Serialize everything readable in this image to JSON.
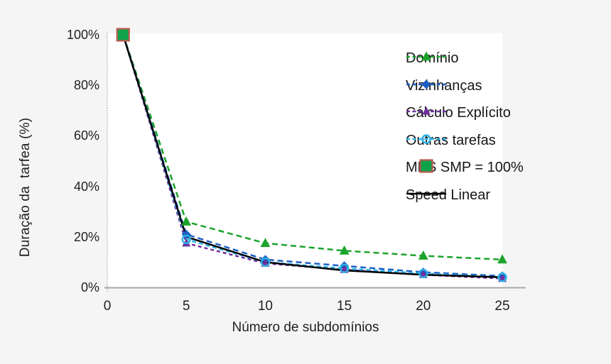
{
  "figure": {
    "background": "#f5f5f5",
    "plot_background": "#ffffff",
    "axis_color": "#a9a9a9",
    "text_color": "#1f1f1f"
  },
  "chart_data": {
    "type": "line",
    "title": "",
    "xlabel": "Número de subdomínios",
    "ylabel": "Duração da  tarfea (%)",
    "xlim": [
      0,
      26.5
    ],
    "ylim": [
      0,
      100
    ],
    "x_ticks": [
      0,
      5,
      10,
      15,
      20,
      25
    ],
    "y_ticks": [
      0,
      20,
      40,
      60,
      80,
      100
    ],
    "y_tick_suffix": "%",
    "grid": false,
    "legend_position": "upper-right-overlay",
    "x": [
      1,
      5,
      10,
      15,
      20,
      25
    ],
    "series": [
      {
        "name": "Domínio",
        "color": "#1ca32c",
        "marker": "triangle",
        "line": "dashed",
        "dash": "8 5",
        "values": [
          100,
          26,
          17.5,
          14.5,
          12.5,
          11
        ]
      },
      {
        "name": "Vizinhanças",
        "color": "#1d5fc4",
        "marker": "diamond",
        "line": "dashed",
        "dash": "8 5",
        "values": [
          100,
          21,
          11,
          8.5,
          6,
          4.5
        ]
      },
      {
        "name": "Cálculo Explícito",
        "color": "#7030a0",
        "marker": "triangle-small",
        "line": "dashed",
        "dash": "5 4",
        "values": [
          100,
          17.5,
          9.5,
          7,
          5,
          3.5
        ]
      },
      {
        "name": "Outras tarefas",
        "color": "#2bb3e8",
        "marker": "circle-open",
        "line": "dashed",
        "dash": "6 4",
        "values": [
          100,
          19,
          10,
          7.5,
          5.5,
          4
        ]
      },
      {
        "name": "MPS SMP = 100%",
        "color": "#0ea24b",
        "marker": "square",
        "marker_border": "#bf5a50",
        "line": "none",
        "x": [
          1
        ],
        "values": [
          100
        ]
      },
      {
        "name": "Speed Linear",
        "color": "#000000",
        "marker": "none",
        "line": "solid",
        "dash": "",
        "values": [
          100,
          20,
          10,
          6.7,
          5,
          4
        ]
      }
    ]
  }
}
